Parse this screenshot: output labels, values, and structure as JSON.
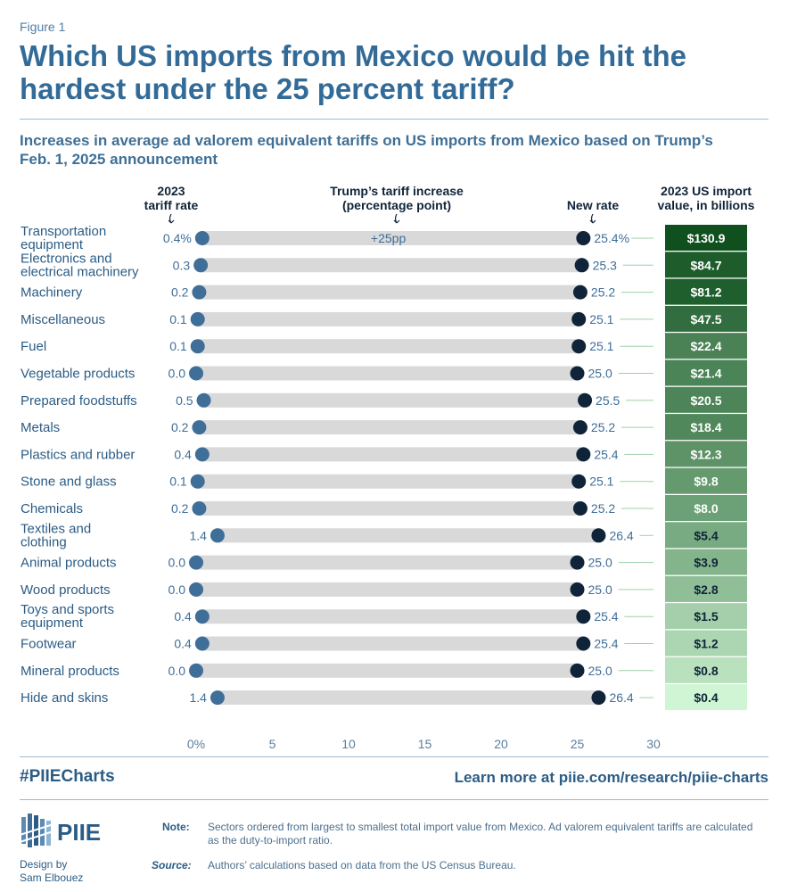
{
  "figure_label": "Figure 1",
  "title": "Which US imports from Mexico would be hit the hardest under the 25 percent tariff?",
  "subtitle": "Increases in average ad valorem equivalent tariffs on US imports from Mexico based on Trump’s Feb. 1, 2025 announcement",
  "footer": {
    "hashtag": "#PIIECharts",
    "learn_more": "Learn more at piie.com/research/piie-charts",
    "logo_text": "PIIE",
    "credit_line1": "Design by",
    "credit_line2": "Sam Elbouez",
    "note_label": "Note:",
    "note_text": "Sectors ordered from largest to smallest total import value from Mexico. Ad valorem equivalent tariffs are calculated as the duty-to-import ratio.",
    "source_label": "Source:",
    "source_text": "Authors’ calculations based on data from the US Census Bureau."
  },
  "colors": {
    "title": "#336b98",
    "old_dot": "#3f6e99",
    "new_dot": "#0f2439",
    "bar": "#d9d9d9",
    "text": "#2b5c85"
  },
  "chart_data": {
    "type": "dumbbell",
    "header_old_rate": [
      "2023",
      "tariff rate"
    ],
    "header_increase": [
      "Trump’s tariff increase",
      "(percentage point)"
    ],
    "header_new_rate": "New rate",
    "header_import_value": [
      "2023 US import",
      "value, in billions"
    ],
    "increase_label": "+25pp",
    "x_ticks": [
      "0%",
      "5",
      "10",
      "15",
      "20",
      "25",
      "30"
    ],
    "xlim": [
      0,
      30
    ],
    "categories": [
      {
        "label": [
          "Transportation",
          "equipment"
        ],
        "old": 0.4,
        "old_label": "0.4%",
        "new": 25.4,
        "new_label": "25.4%",
        "value": 130.9,
        "value_label": "$130.9"
      },
      {
        "label": [
          "Electronics and",
          "electrical machinery"
        ],
        "old": 0.3,
        "old_label": "0.3",
        "new": 25.3,
        "new_label": "25.3",
        "value": 84.7,
        "value_label": "$84.7"
      },
      {
        "label": [
          "Machinery"
        ],
        "old": 0.2,
        "old_label": "0.2",
        "new": 25.2,
        "new_label": "25.2",
        "value": 81.2,
        "value_label": "$81.2"
      },
      {
        "label": [
          "Miscellaneous"
        ],
        "old": 0.1,
        "old_label": "0.1",
        "new": 25.1,
        "new_label": "25.1",
        "value": 47.5,
        "value_label": "$47.5"
      },
      {
        "label": [
          "Fuel"
        ],
        "old": 0.1,
        "old_label": "0.1",
        "new": 25.1,
        "new_label": "25.1",
        "value": 22.4,
        "value_label": "$22.4"
      },
      {
        "label": [
          "Vegetable products"
        ],
        "old": 0.0,
        "old_label": "0.0",
        "new": 25.0,
        "new_label": "25.0",
        "value": 21.4,
        "value_label": "$21.4"
      },
      {
        "label": [
          "Prepared foodstuffs"
        ],
        "old": 0.5,
        "old_label": "0.5",
        "new": 25.5,
        "new_label": "25.5",
        "value": 20.5,
        "value_label": "$20.5"
      },
      {
        "label": [
          "Metals"
        ],
        "old": 0.2,
        "old_label": "0.2",
        "new": 25.2,
        "new_label": "25.2",
        "value": 18.4,
        "value_label": "$18.4"
      },
      {
        "label": [
          "Plastics and rubber"
        ],
        "old": 0.4,
        "old_label": "0.4",
        "new": 25.4,
        "new_label": "25.4",
        "value": 12.3,
        "value_label": "$12.3"
      },
      {
        "label": [
          "Stone and glass"
        ],
        "old": 0.1,
        "old_label": "0.1",
        "new": 25.1,
        "new_label": "25.1",
        "value": 9.8,
        "value_label": "$9.8"
      },
      {
        "label": [
          "Chemicals"
        ],
        "old": 0.2,
        "old_label": "0.2",
        "new": 25.2,
        "new_label": "25.2",
        "value": 8.0,
        "value_label": "$8.0"
      },
      {
        "label": [
          "Textiles and",
          "clothing"
        ],
        "old": 1.4,
        "old_label": "1.4",
        "new": 26.4,
        "new_label": "26.4",
        "value": 5.4,
        "value_label": "$5.4"
      },
      {
        "label": [
          "Animal products"
        ],
        "old": 0.0,
        "old_label": "0.0",
        "new": 25.0,
        "new_label": "25.0",
        "value": 3.9,
        "value_label": "$3.9"
      },
      {
        "label": [
          "Wood products"
        ],
        "old": 0.0,
        "old_label": "0.0",
        "new": 25.0,
        "new_label": "25.0",
        "value": 2.8,
        "value_label": "$2.8"
      },
      {
        "label": [
          "Toys and sports",
          "equipment"
        ],
        "old": 0.4,
        "old_label": "0.4",
        "new": 25.4,
        "new_label": "25.4",
        "value": 1.5,
        "value_label": "$1.5"
      },
      {
        "label": [
          "Footwear"
        ],
        "old": 0.4,
        "old_label": "0.4",
        "new": 25.4,
        "new_label": "25.4",
        "value": 1.2,
        "value_label": "$1.2"
      },
      {
        "label": [
          "Mineral products"
        ],
        "old": 0.0,
        "old_label": "0.0",
        "new": 25.0,
        "new_label": "25.0",
        "value": 0.8,
        "value_label": "$0.8"
      },
      {
        "label": [
          "Hide and skins"
        ],
        "old": 1.4,
        "old_label": "1.4",
        "new": 26.4,
        "new_label": "26.4",
        "value": 0.4,
        "value_label": "$0.4"
      }
    ]
  }
}
